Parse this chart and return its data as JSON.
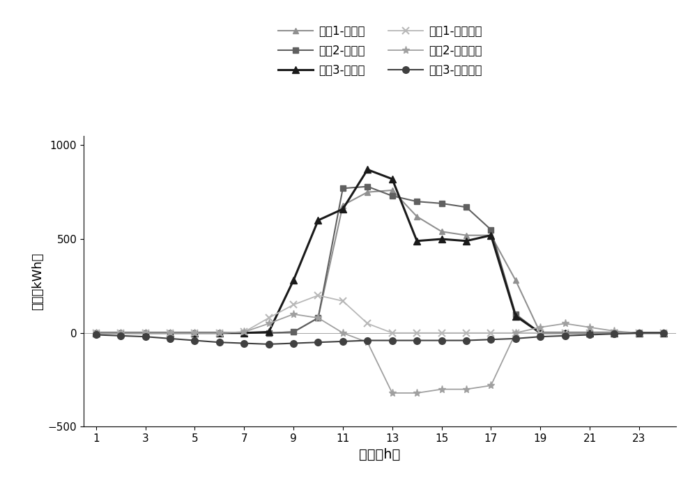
{
  "hours": [
    1,
    2,
    3,
    4,
    5,
    6,
    7,
    8,
    9,
    10,
    11,
    12,
    13,
    14,
    15,
    16,
    17,
    18,
    19,
    20,
    21,
    22,
    23,
    24
  ],
  "strategy1_solar": [
    0,
    0,
    0,
    0,
    0,
    0,
    0,
    0,
    5,
    80,
    680,
    750,
    760,
    620,
    540,
    520,
    520,
    280,
    0,
    0,
    0,
    0,
    0,
    0
  ],
  "strategy2_solar": [
    0,
    0,
    0,
    0,
    0,
    0,
    0,
    0,
    5,
    80,
    770,
    780,
    730,
    700,
    690,
    670,
    550,
    100,
    0,
    0,
    0,
    0,
    0,
    0
  ],
  "strategy3_solar": [
    0,
    0,
    0,
    0,
    0,
    0,
    0,
    5,
    280,
    600,
    660,
    870,
    820,
    490,
    500,
    490,
    520,
    90,
    0,
    0,
    0,
    0,
    0,
    0
  ],
  "strategy1_ev": [
    0,
    0,
    0,
    0,
    0,
    0,
    5,
    80,
    150,
    200,
    170,
    50,
    0,
    0,
    0,
    0,
    0,
    0,
    0,
    0,
    0,
    0,
    0,
    0
  ],
  "strategy2_ev": [
    0,
    0,
    0,
    0,
    0,
    0,
    5,
    50,
    100,
    80,
    0,
    -50,
    -320,
    -320,
    -300,
    -300,
    -280,
    0,
    30,
    50,
    30,
    10,
    0,
    0
  ],
  "strategy3_ev": [
    -10,
    -15,
    -20,
    -30,
    -40,
    -50,
    -55,
    -60,
    -55,
    -50,
    -45,
    -40,
    -40,
    -40,
    -40,
    -40,
    -35,
    -30,
    -20,
    -15,
    -10,
    -5,
    0,
    0
  ],
  "legend_labels": [
    "策略1-太阳能",
    "策略2-太阳能",
    "策略3-太阳能",
    "策略1-电动汽车",
    "策略2-电动汽车",
    "策略3-电动汽车"
  ],
  "xlabel": "时间（h）",
  "ylabel": "能量（kWh）",
  "ylim": [
    -500,
    1050
  ],
  "yticks": [
    -500,
    0,
    500,
    1000
  ],
  "xticks": [
    1,
    3,
    5,
    7,
    9,
    11,
    13,
    15,
    17,
    19,
    21,
    23
  ]
}
